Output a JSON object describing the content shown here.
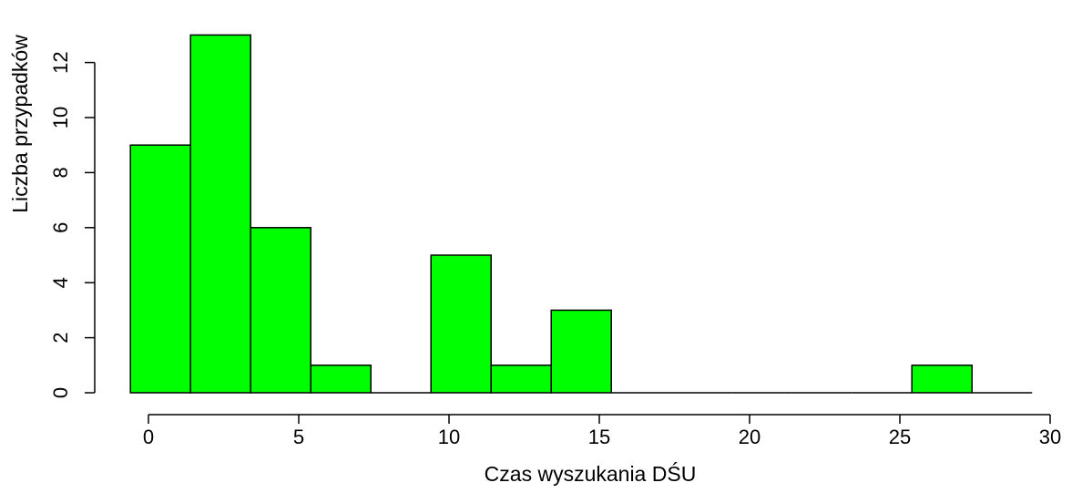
{
  "chart_data": {
    "type": "bar",
    "subtype": "histogram",
    "title": "",
    "xlabel": "Czas wyszukania DŚU",
    "ylabel": "Liczba przypadków",
    "bin_width": 2,
    "bins": [
      {
        "start": -0.6,
        "end": 1.4,
        "count": 9
      },
      {
        "start": 1.4,
        "end": 3.4,
        "count": 13
      },
      {
        "start": 3.4,
        "end": 5.4,
        "count": 6
      },
      {
        "start": 5.4,
        "end": 7.4,
        "count": 1
      },
      {
        "start": 7.4,
        "end": 9.4,
        "count": 0
      },
      {
        "start": 9.4,
        "end": 11.4,
        "count": 5
      },
      {
        "start": 11.4,
        "end": 13.4,
        "count": 1
      },
      {
        "start": 13.4,
        "end": 15.4,
        "count": 3
      },
      {
        "start": 15.4,
        "end": 17.4,
        "count": 0
      },
      {
        "start": 17.4,
        "end": 19.4,
        "count": 0
      },
      {
        "start": 19.4,
        "end": 21.4,
        "count": 0
      },
      {
        "start": 21.4,
        "end": 23.4,
        "count": 0
      },
      {
        "start": 23.4,
        "end": 25.4,
        "count": 0
      },
      {
        "start": 25.4,
        "end": 27.4,
        "count": 1
      },
      {
        "start": 27.4,
        "end": 29.4,
        "count": 0
      }
    ],
    "xlim": [
      0,
      30
    ],
    "ylim": [
      0,
      12
    ],
    "x_ticks": [
      0,
      5,
      10,
      15,
      20,
      25,
      30
    ],
    "y_ticks": [
      0,
      2,
      4,
      6,
      8,
      10,
      12
    ],
    "bar_color": "#00ff00",
    "edge_color": "#000000",
    "grid": false,
    "legend": "none"
  }
}
